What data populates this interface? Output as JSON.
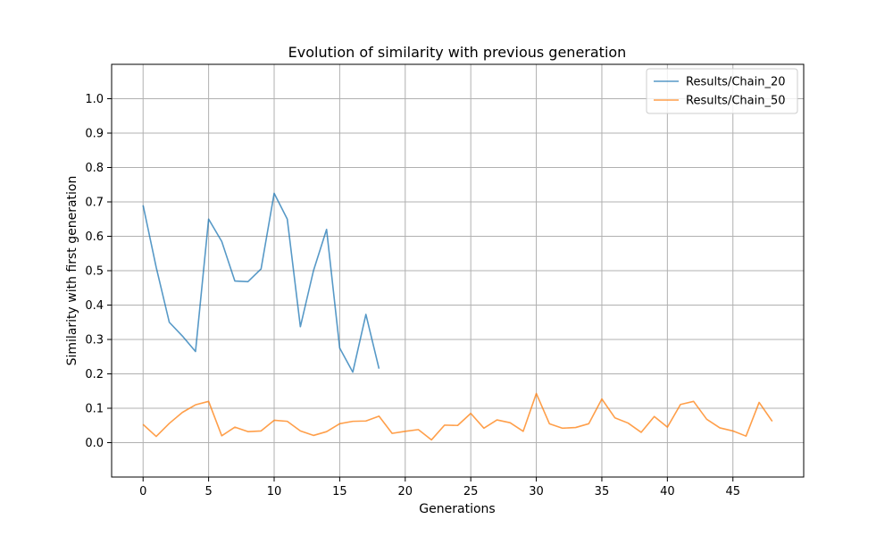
{
  "chart_data": {
    "type": "line",
    "title": "Evolution of similarity with previous generation",
    "xlabel": "Generations",
    "ylabel": "Similarity with first generation",
    "xlim": [
      -2.4,
      50.4
    ],
    "ylim": [
      -0.1,
      1.1
    ],
    "xticks": [
      0,
      5,
      10,
      15,
      20,
      25,
      30,
      35,
      40,
      45
    ],
    "yticks": [
      0.0,
      0.1,
      0.2,
      0.3,
      0.4,
      0.5,
      0.6,
      0.7,
      0.8,
      0.9,
      1.0
    ],
    "grid": true,
    "legend_position": "top-right",
    "series": [
      {
        "name": "Results/Chain_20",
        "color": "#1f77b4",
        "x": [
          0,
          1,
          2,
          3,
          4,
          5,
          6,
          7,
          8,
          9,
          10,
          11,
          12,
          13,
          14,
          15,
          16,
          17,
          18
        ],
        "values": [
          0.69,
          0.51,
          0.35,
          0.31,
          0.265,
          0.65,
          0.585,
          0.47,
          0.468,
          0.505,
          0.725,
          0.65,
          0.337,
          0.5,
          0.62,
          0.275,
          0.205,
          0.373,
          0.215
        ]
      },
      {
        "name": "Results/Chain_50",
        "color": "#ff7f0e",
        "x": [
          0,
          1,
          2,
          3,
          4,
          5,
          6,
          7,
          8,
          9,
          10,
          11,
          12,
          13,
          14,
          15,
          16,
          17,
          18,
          19,
          20,
          21,
          22,
          23,
          24,
          25,
          26,
          27,
          28,
          29,
          30,
          31,
          32,
          33,
          34,
          35,
          36,
          37,
          38,
          39,
          40,
          41,
          42,
          43,
          44,
          45,
          46,
          47,
          48
        ],
        "values": [
          0.053,
          0.018,
          0.056,
          0.088,
          0.11,
          0.12,
          0.02,
          0.045,
          0.032,
          0.034,
          0.065,
          0.062,
          0.034,
          0.021,
          0.032,
          0.055,
          0.062,
          0.063,
          0.077,
          0.027,
          0.033,
          0.038,
          0.008,
          0.051,
          0.05,
          0.085,
          0.042,
          0.066,
          0.058,
          0.033,
          0.143,
          0.055,
          0.042,
          0.044,
          0.055,
          0.127,
          0.072,
          0.057,
          0.03,
          0.076,
          0.045,
          0.111,
          0.12,
          0.068,
          0.043,
          0.034,
          0.019,
          0.117,
          0.062
        ]
      }
    ]
  }
}
